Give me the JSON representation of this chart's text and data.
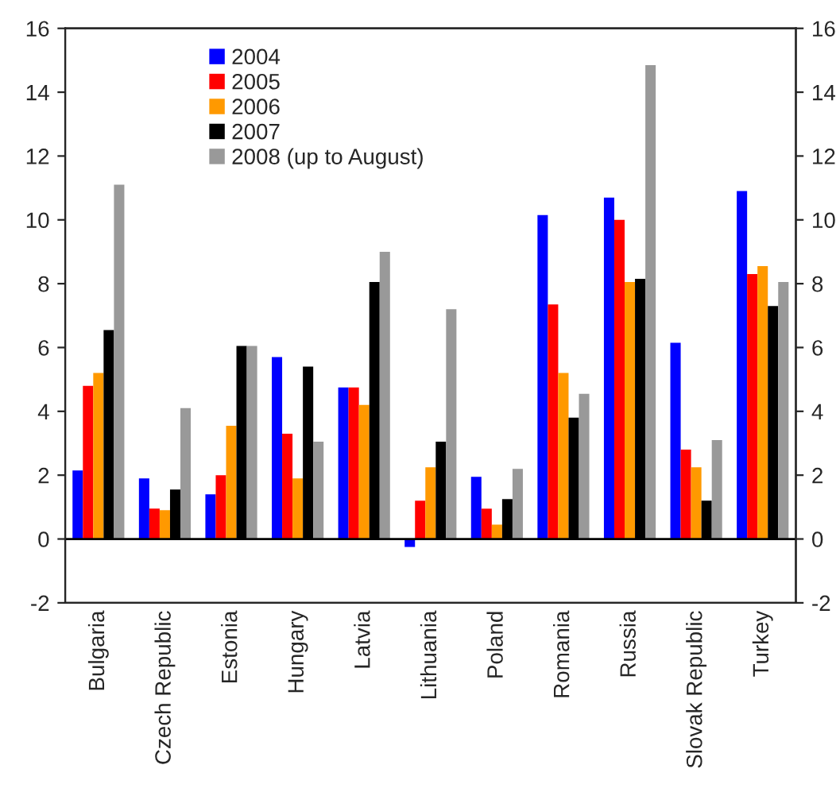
{
  "chart_data": {
    "type": "bar",
    "categories": [
      "Bulgaria",
      "Czech Republic",
      "Estonia",
      "Hungary",
      "Latvia",
      "Lithuania",
      "Poland",
      "Romania",
      "Russia",
      "Slovak Republic",
      "Turkey"
    ],
    "series": [
      {
        "name": "2004",
        "color": "#0000ff",
        "values": [
          2.15,
          1.9,
          1.4,
          5.7,
          4.75,
          -0.25,
          1.95,
          10.15,
          10.7,
          6.15,
          10.9
        ]
      },
      {
        "name": "2005",
        "color": "#ff0000",
        "values": [
          4.8,
          0.95,
          2.0,
          3.3,
          4.75,
          1.2,
          0.95,
          7.35,
          10.0,
          2.8,
          8.3
        ]
      },
      {
        "name": "2006",
        "color": "#ff9900",
        "values": [
          5.2,
          0.9,
          3.55,
          1.9,
          4.2,
          2.25,
          0.45,
          5.2,
          8.05,
          2.25,
          8.55
        ]
      },
      {
        "name": "2007",
        "color": "#000000",
        "values": [
          6.55,
          1.55,
          6.05,
          5.4,
          8.05,
          3.05,
          1.25,
          3.8,
          8.15,
          1.2,
          7.3
        ]
      },
      {
        "name": "2008 (up to August)",
        "color": "#999999",
        "values": [
          11.1,
          4.1,
          6.05,
          3.05,
          9.0,
          7.2,
          2.2,
          4.55,
          14.85,
          3.1,
          8.05
        ]
      }
    ],
    "ylim": [
      -2,
      16
    ],
    "yticks": [
      -2,
      0,
      2,
      4,
      6,
      8,
      10,
      12,
      14,
      16
    ],
    "y2lim": [
      -2,
      16
    ],
    "y2ticks": [
      -2,
      0,
      2,
      4,
      6,
      8,
      10,
      12,
      14,
      16
    ],
    "ref_lines": [
      {
        "axis": "y",
        "value": 0,
        "color": "#000000"
      }
    ],
    "legend": "top left",
    "grid": false
  }
}
